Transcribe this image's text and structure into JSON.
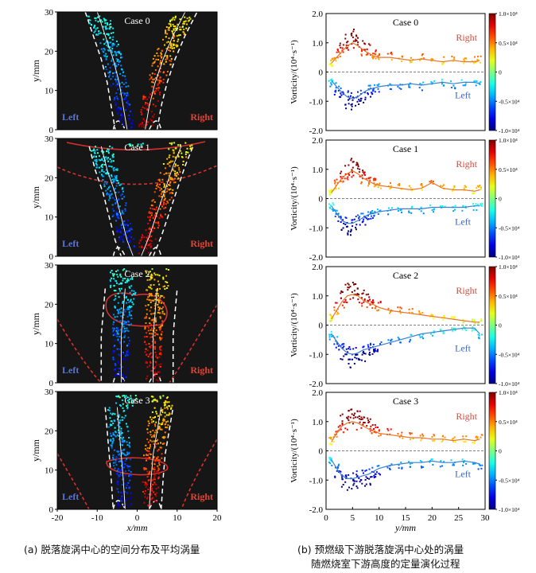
{
  "colors": {
    "left": "#4c6fd1",
    "right": "#d63a2e",
    "panel_bg": "#161616",
    "dashed": "#ffffff",
    "contour": "#d63030"
  },
  "colorbar_ticks": [
    "1.0×10⁴",
    "0.5×10⁴",
    "0",
    "-0.5×10⁴",
    "-1.0×10⁴"
  ],
  "captions": {
    "left": "(a) 脱落旋涡中心的空间分布及平均涡量",
    "right_line1": "(b) 预燃级下游脱落旋涡中心处的涡量",
    "right_line2": "随燃烧室下游高度的定量演化过程"
  },
  "chart_data": [
    {
      "type": "scatter",
      "group": "a",
      "title": "Case 0",
      "xlabel": "x/mm",
      "ylabel": "y/mm",
      "xlim": [
        -20,
        20
      ],
      "ylim": [
        0,
        30
      ],
      "xticks": [
        "-20",
        "-10",
        "0",
        "10",
        "20"
      ],
      "yticks": [
        "0",
        "10",
        "20",
        "30"
      ],
      "left_label": "Left",
      "right_label": "Right",
      "left_centerline": [
        [
          -10,
          30
        ],
        [
          -8,
          24
        ],
        [
          -6,
          18
        ],
        [
          -4.5,
          12
        ],
        [
          -3.5,
          6
        ],
        [
          -2.5,
          0
        ]
      ],
      "right_centerline": [
        [
          2,
          0
        ],
        [
          3,
          6
        ],
        [
          4.5,
          12
        ],
        [
          6.5,
          18
        ],
        [
          9,
          24
        ],
        [
          12,
          30
        ]
      ]
    },
    {
      "type": "scatter",
      "group": "a",
      "title": "Case 1",
      "xlabel": "x/mm",
      "ylabel": "y/mm",
      "xlim": [
        -20,
        20
      ],
      "ylim": [
        0,
        30
      ],
      "xticks": [
        "-20",
        "-10",
        "0",
        "10",
        "20"
      ],
      "yticks": [
        "0",
        "10",
        "20",
        "30"
      ],
      "left_label": "Left",
      "right_label": "Right",
      "left_centerline": [
        [
          -9,
          28
        ],
        [
          -7.5,
          22
        ],
        [
          -5.5,
          16
        ],
        [
          -4,
          10
        ],
        [
          -2.5,
          4
        ],
        [
          -1,
          0
        ]
      ],
      "right_centerline": [
        [
          1,
          0
        ],
        [
          3,
          5
        ],
        [
          5,
          11
        ],
        [
          7,
          17
        ],
        [
          9,
          23
        ],
        [
          11,
          28
        ]
      ]
    },
    {
      "type": "scatter",
      "group": "a",
      "title": "Case 2",
      "xlabel": "x/mm",
      "ylabel": "y/mm",
      "xlim": [
        -20,
        20
      ],
      "ylim": [
        0,
        30
      ],
      "xticks": [
        "-20",
        "-10",
        "0",
        "10",
        "20"
      ],
      "yticks": [
        "0",
        "10",
        "20",
        "30"
      ],
      "left_label": "Left",
      "right_label": "Right",
      "left_centerline": [
        [
          -3,
          24
        ],
        [
          -3.5,
          18
        ],
        [
          -4,
          12
        ],
        [
          -4,
          6
        ],
        [
          -4,
          0
        ]
      ],
      "right_centerline": [
        [
          4,
          0
        ],
        [
          4,
          6
        ],
        [
          4,
          12
        ],
        [
          4.5,
          18
        ],
        [
          5,
          24
        ]
      ]
    },
    {
      "type": "scatter",
      "group": "a",
      "title": "Case 3",
      "xlabel": "x/mm",
      "ylabel": "y/mm",
      "xlim": [
        -20,
        20
      ],
      "ylim": [
        0,
        30
      ],
      "xticks": [
        "-20",
        "-10",
        "0",
        "10",
        "20"
      ],
      "yticks": [
        "0",
        "10",
        "20",
        "30"
      ],
      "left_label": "Left",
      "right_label": "Right",
      "left_centerline": [
        [
          -5,
          26
        ],
        [
          -4.5,
          20
        ],
        [
          -4,
          14
        ],
        [
          -3.5,
          8
        ],
        [
          -3,
          0
        ]
      ],
      "right_centerline": [
        [
          3,
          0
        ],
        [
          3.5,
          8
        ],
        [
          4,
          14
        ],
        [
          5,
          20
        ],
        [
          6,
          26
        ]
      ]
    },
    {
      "type": "line",
      "group": "b",
      "title": "Case 0",
      "xlabel": "y/mm",
      "ylabel": "Vorticity/(10⁴·s⁻¹)",
      "xlim": [
        0,
        30
      ],
      "ylim": [
        -2.0,
        2.0
      ],
      "xticks": [
        "0",
        "5",
        "10",
        "15",
        "20",
        "25",
        "30"
      ],
      "yticks": [
        "2.0",
        "1.0",
        "0",
        "-1.0",
        "-2.0"
      ],
      "right_label": "Right",
      "left_label": "Left",
      "x": [
        1,
        2,
        3,
        4,
        5,
        6,
        7,
        8,
        9,
        10,
        12,
        14,
        16,
        18,
        20,
        22,
        24,
        26,
        28,
        29
      ],
      "series": [
        {
          "name": "Right",
          "values": [
            0.3,
            0.5,
            0.7,
            0.9,
            1.0,
            0.9,
            0.75,
            0.65,
            0.55,
            0.5,
            0.5,
            0.45,
            0.4,
            0.45,
            0.4,
            0.35,
            0.4,
            0.35,
            0.35,
            0.4
          ]
        },
        {
          "name": "Left",
          "values": [
            -0.3,
            -0.5,
            -0.7,
            -0.85,
            -0.9,
            -0.85,
            -0.7,
            -0.6,
            -0.55,
            -0.5,
            -0.45,
            -0.45,
            -0.4,
            -0.45,
            -0.4,
            -0.35,
            -0.4,
            -0.35,
            -0.35,
            -0.4
          ]
        }
      ]
    },
    {
      "type": "line",
      "group": "b",
      "title": "Case 1",
      "xlabel": "y/mm",
      "ylabel": "Vorticity/(10⁴·s⁻¹)",
      "xlim": [
        0,
        30
      ],
      "ylim": [
        -2.0,
        2.0
      ],
      "xticks": [
        "0",
        "5",
        "10",
        "15",
        "20",
        "25",
        "30"
      ],
      "yticks": [
        "2.0",
        "1.0",
        "0",
        "-1.0",
        "-2.0"
      ],
      "right_label": "Right",
      "left_label": "Left",
      "x": [
        1,
        2,
        3,
        4,
        5,
        6,
        7,
        8,
        9,
        10,
        12,
        14,
        16,
        18,
        20,
        22,
        24,
        26,
        28,
        29
      ],
      "series": [
        {
          "name": "Right",
          "values": [
            0.2,
            0.45,
            0.7,
            0.85,
            0.95,
            0.85,
            0.7,
            0.6,
            0.5,
            0.45,
            0.4,
            0.35,
            0.3,
            0.35,
            0.55,
            0.35,
            0.3,
            0.3,
            0.25,
            0.3
          ]
        },
        {
          "name": "Left",
          "values": [
            -0.25,
            -0.5,
            -0.75,
            -0.85,
            -0.85,
            -0.75,
            -0.65,
            -0.55,
            -0.5,
            -0.45,
            -0.4,
            -0.35,
            -0.35,
            -0.35,
            -0.3,
            -0.3,
            -0.3,
            -0.3,
            -0.25,
            -0.25
          ]
        }
      ]
    },
    {
      "type": "line",
      "group": "b",
      "title": "Case 2",
      "xlabel": "y/mm",
      "ylabel": "Vorticity/(10⁴·s⁻¹)",
      "xlim": [
        0,
        30
      ],
      "ylim": [
        -2.0,
        2.0
      ],
      "xticks": [
        "0",
        "5",
        "10",
        "15",
        "20",
        "25",
        "30"
      ],
      "yticks": [
        "2.0",
        "1.0",
        "0",
        "-1.0",
        "-2.0"
      ],
      "right_label": "Right",
      "left_label": "Left",
      "x": [
        1,
        2,
        3,
        4,
        5,
        6,
        7,
        8,
        9,
        10,
        12,
        14,
        16,
        18,
        20,
        22,
        24,
        26,
        28,
        29
      ],
      "series": [
        {
          "name": "Right",
          "values": [
            0.2,
            0.5,
            0.8,
            1.0,
            1.05,
            1.0,
            0.85,
            0.75,
            0.7,
            0.6,
            0.5,
            0.45,
            0.4,
            0.35,
            0.3,
            0.25,
            0.2,
            0.15,
            0.1,
            0.1
          ]
        },
        {
          "name": "Left",
          "values": [
            -0.3,
            -0.55,
            -0.8,
            -0.95,
            -1.0,
            -0.95,
            -0.85,
            -0.8,
            -0.75,
            -0.7,
            -0.6,
            -0.5,
            -0.4,
            -0.3,
            -0.25,
            -0.2,
            -0.15,
            -0.1,
            -0.1,
            -0.3
          ]
        }
      ]
    },
    {
      "type": "line",
      "group": "b",
      "title": "Case 3",
      "xlabel": "y/mm",
      "ylabel": "Vorticity/(10⁴·s⁻¹)",
      "xlim": [
        0,
        30
      ],
      "ylim": [
        -2.0,
        2.0
      ],
      "xticks": [
        "0",
        "5",
        "10",
        "15",
        "20",
        "25",
        "30"
      ],
      "yticks": [
        "2.0",
        "1.0",
        "0",
        "-1.0",
        "-2.0"
      ],
      "right_label": "Right",
      "left_label": "Left",
      "x": [
        1,
        2,
        3,
        4,
        5,
        6,
        7,
        8,
        9,
        10,
        12,
        14,
        16,
        18,
        20,
        22,
        24,
        26,
        28,
        29
      ],
      "series": [
        {
          "name": "Right",
          "values": [
            0.3,
            0.6,
            0.85,
            0.95,
            1.0,
            0.95,
            0.85,
            0.75,
            0.7,
            0.6,
            0.55,
            0.5,
            0.45,
            0.45,
            0.4,
            0.4,
            0.35,
            0.4,
            0.35,
            0.4
          ]
        },
        {
          "name": "Left",
          "values": [
            -0.3,
            -0.6,
            -0.85,
            -0.95,
            -0.95,
            -0.9,
            -0.85,
            -0.8,
            -0.7,
            -0.6,
            -0.5,
            -0.45,
            -0.4,
            -0.4,
            -0.35,
            -0.4,
            -0.4,
            -0.35,
            -0.4,
            -0.45
          ]
        }
      ]
    }
  ]
}
